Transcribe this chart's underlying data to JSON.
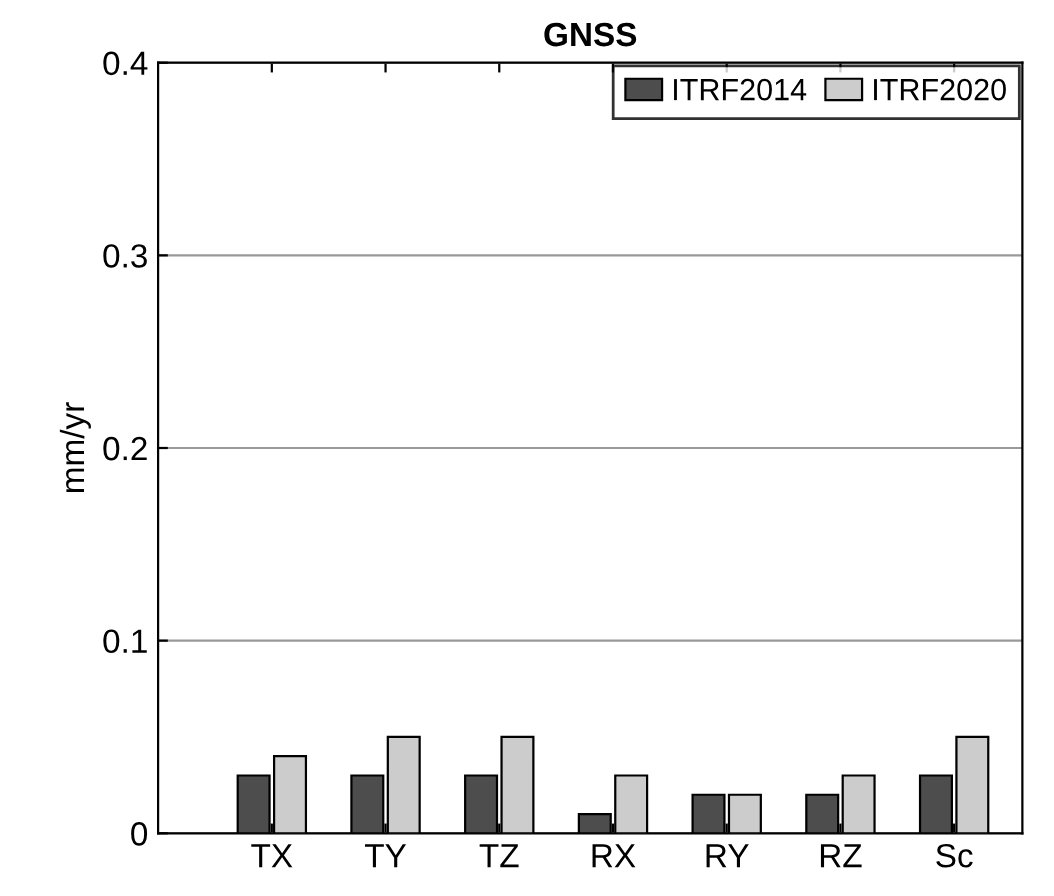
{
  "chart_data": {
    "type": "bar",
    "title": "GNSS",
    "ylabel": "mm/yr",
    "categories": [
      "TX",
      "TY",
      "TZ",
      "RX",
      "RY",
      "RZ",
      "Sc"
    ],
    "series": [
      {
        "name": "ITRF2014",
        "color": "#4d4d4d",
        "values": [
          0.03,
          0.03,
          0.03,
          0.01,
          0.02,
          0.02,
          0.03
        ]
      },
      {
        "name": "ITRF2020",
        "color": "#cccccc",
        "values": [
          0.04,
          0.05,
          0.05,
          0.03,
          0.02,
          0.03,
          0.05
        ]
      }
    ],
    "ylim": [
      0,
      0.4
    ],
    "yticks": [
      0,
      0.1,
      0.2,
      0.3,
      0.4
    ],
    "grid": "y",
    "legend": "top right"
  }
}
